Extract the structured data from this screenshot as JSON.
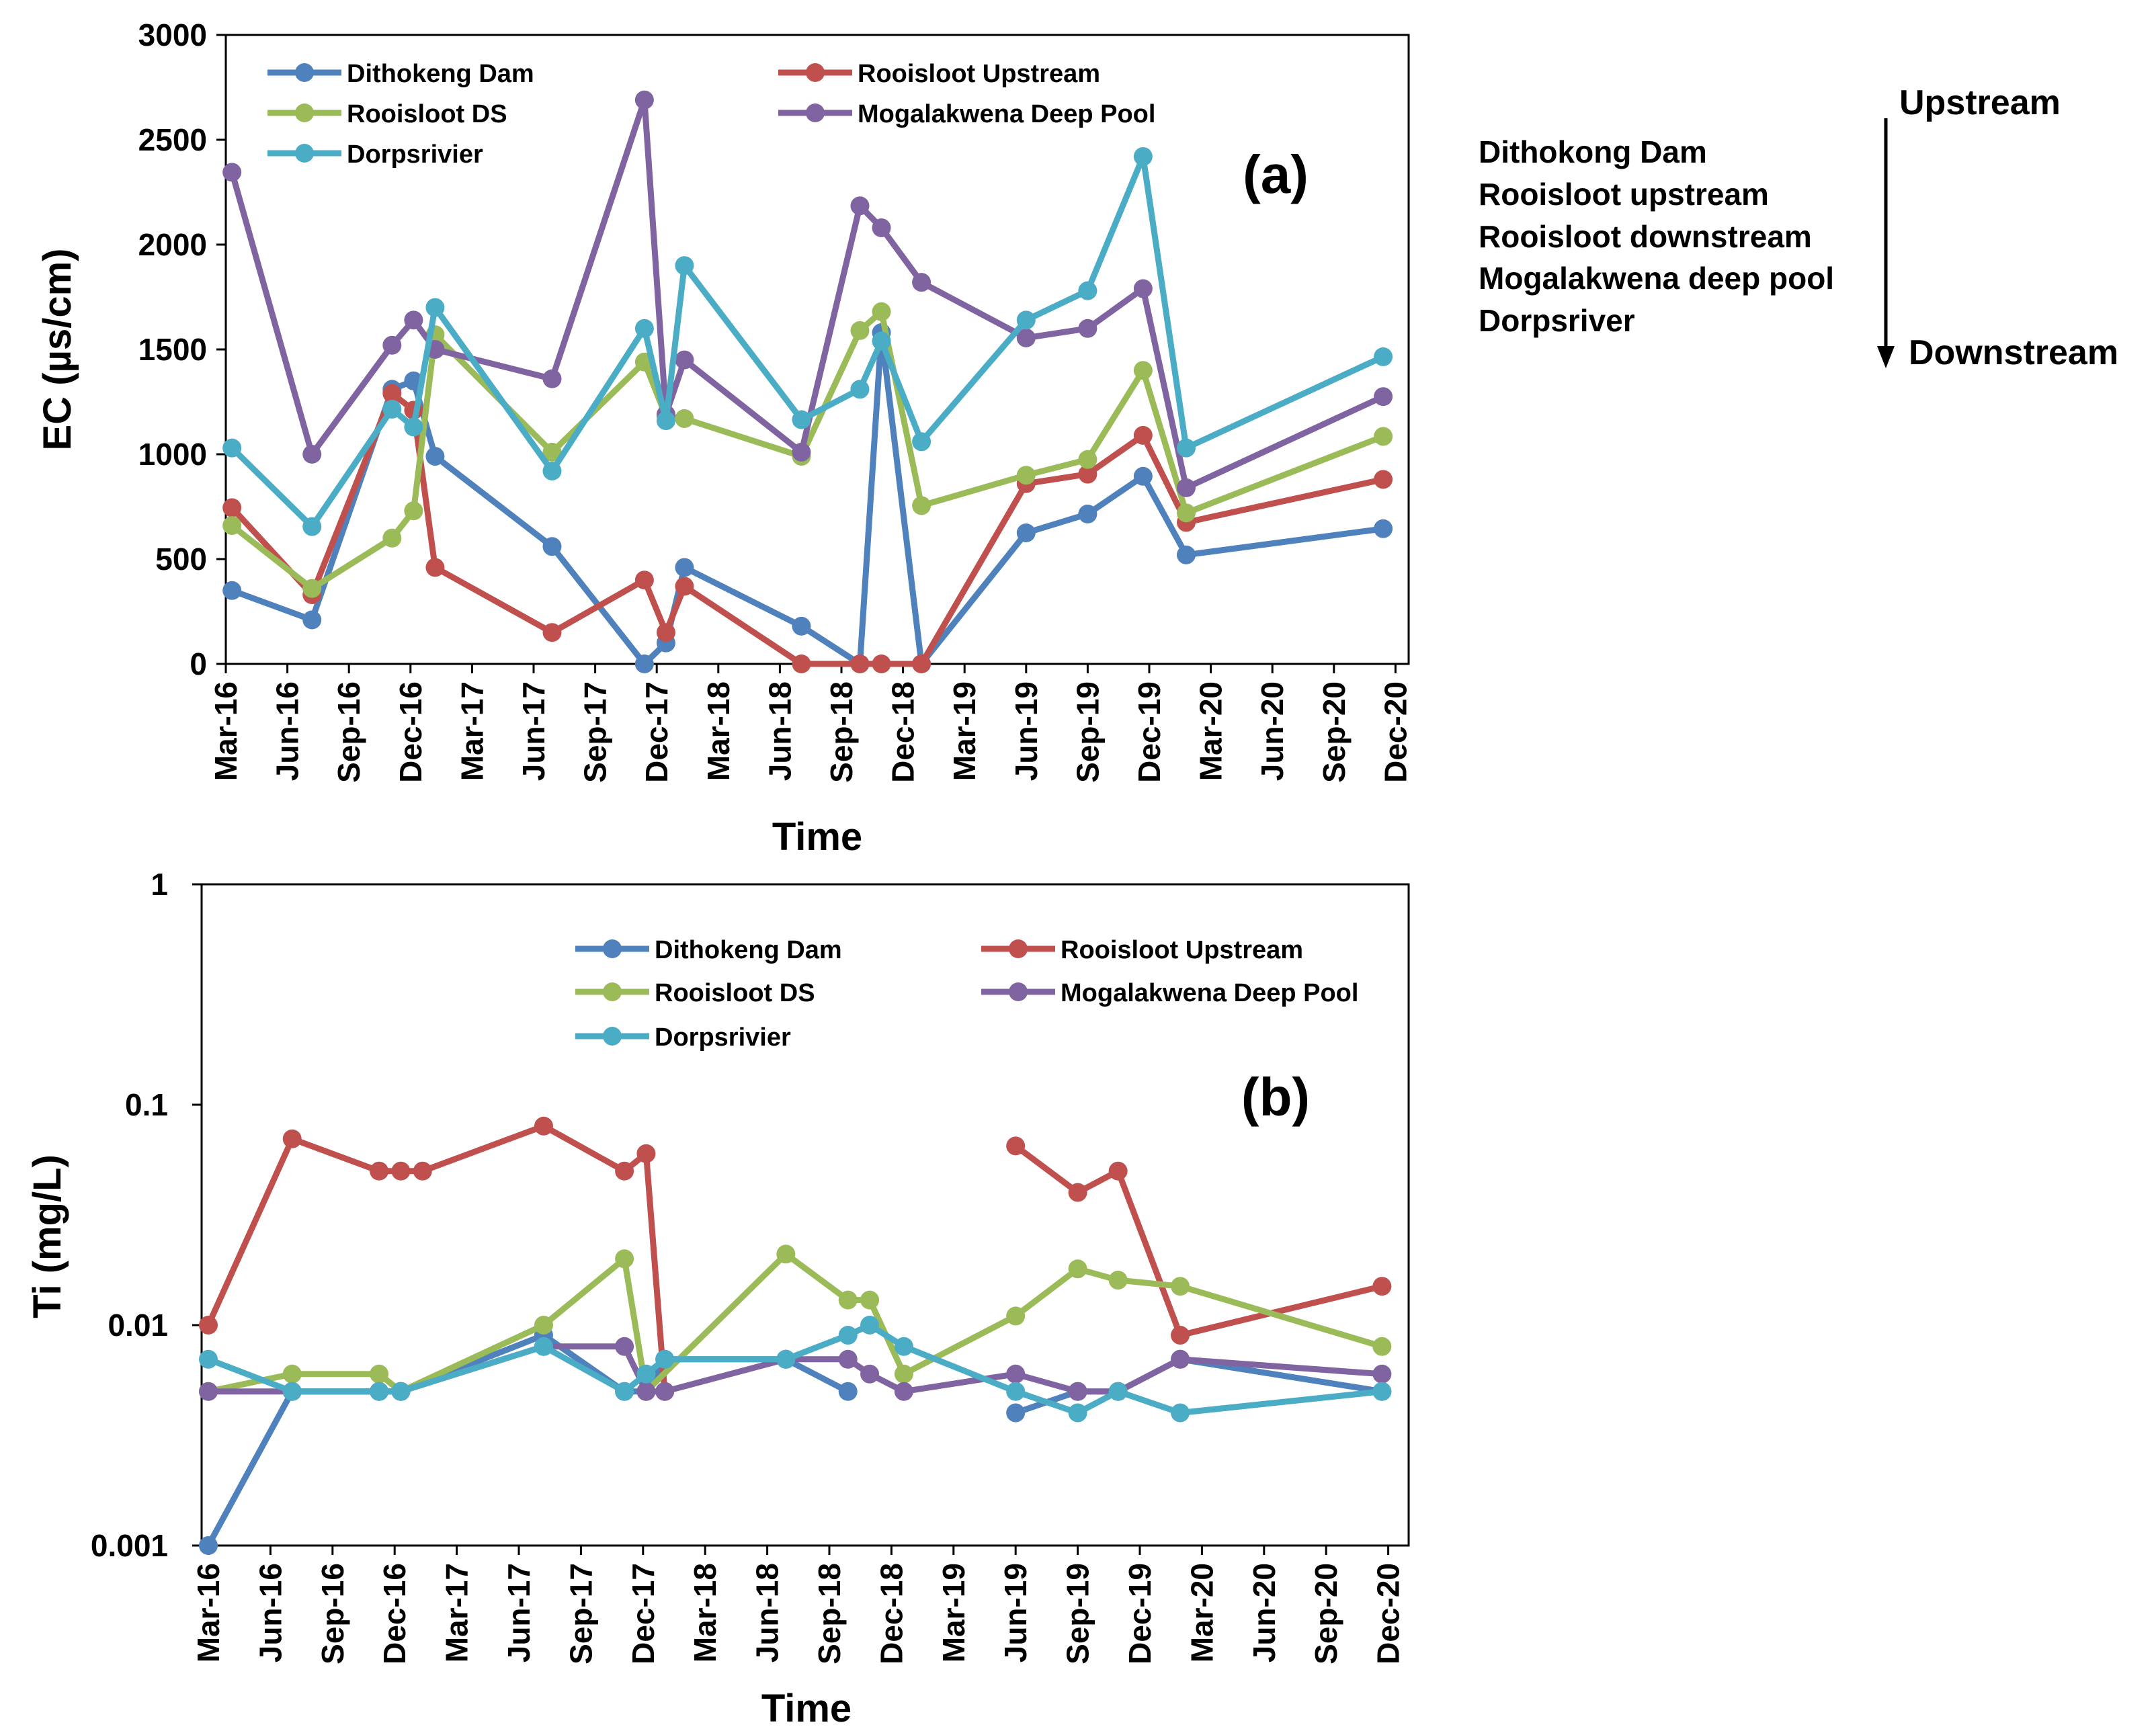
{
  "colors": {
    "Dithokeng Dam": "#4F81BD",
    "Rooisloot Upstream": "#C0504D",
    "Rooisloot DS": "#9BBB59",
    "Mogalakwena Deep Pool": "#8064A2",
    "Dorpsrivier": "#4BACC6"
  },
  "side_legend": {
    "upstream_label": "Upstream",
    "downstream_label": "Downstream",
    "sites": [
      "Dithokong Dam",
      "Rooisloot upstream",
      "Rooisloot downstream",
      "Mogalakwena deep pool",
      "Dorpsriver"
    ]
  },
  "chart_data": [
    {
      "type": "line",
      "panel_label": "(a)",
      "xlabel": "Time",
      "ylabel": "EC (µs/cm)",
      "x_ticks": [
        "Mar-16",
        "Jun-16",
        "Sep-16",
        "Dec-16",
        "Mar-17",
        "Jun-17",
        "Sep-17",
        "Dec-17",
        "Mar-18",
        "Jun-18",
        "Sep-18",
        "Dec-18",
        "Mar-19",
        "Jun-19",
        "Sep-19",
        "Dec-19",
        "Mar-20",
        "Jun-20",
        "Sep-20",
        "Dec-20"
      ],
      "ylim": [
        0,
        3000
      ],
      "y_ticks": [
        "0",
        "500",
        "1000",
        "1500",
        "2000",
        "2500",
        "3000"
      ],
      "legend_position": "top-left",
      "series": [
        {
          "name": "Dithokeng Dam",
          "points": [
            [
              0.1,
              350
            ],
            [
              1.4,
              210
            ],
            [
              2.7,
              1310
            ],
            [
              3.05,
              1350
            ],
            [
              3.4,
              990
            ],
            [
              5.3,
              560
            ],
            [
              6.8,
              0
            ],
            [
              7.15,
              100
            ],
            [
              7.45,
              460
            ],
            [
              9.35,
              180
            ],
            [
              10.3,
              0
            ],
            [
              10.65,
              1580
            ],
            [
              11.3,
              0
            ],
            [
              13.0,
              625
            ],
            [
              14.0,
              715
            ],
            [
              14.9,
              895
            ],
            [
              15.6,
              520
            ],
            [
              18.8,
              645
            ]
          ]
        },
        {
          "name": "Rooisloot Upstream",
          "points": [
            [
              0.1,
              745
            ],
            [
              1.4,
              330
            ],
            [
              2.7,
              1290
            ],
            [
              3.05,
              1210
            ],
            [
              3.4,
              460
            ],
            [
              5.3,
              150
            ],
            [
              6.8,
              400
            ],
            [
              7.15,
              150
            ],
            [
              7.45,
              370
            ],
            [
              9.35,
              0
            ],
            [
              10.3,
              0
            ],
            [
              10.65,
              0
            ],
            [
              11.3,
              0
            ],
            [
              13.0,
              860
            ],
            [
              14.0,
              905
            ],
            [
              14.9,
              1090
            ],
            [
              15.6,
              675
            ],
            [
              18.8,
              880
            ]
          ]
        },
        {
          "name": "Rooisloot DS",
          "points": [
            [
              0.1,
              660
            ],
            [
              1.4,
              360
            ],
            [
              2.7,
              600
            ],
            [
              3.05,
              730
            ],
            [
              3.4,
              1570
            ],
            [
              5.3,
              1010
            ],
            [
              6.8,
              1440
            ],
            [
              7.15,
              1180
            ],
            [
              7.45,
              1170
            ],
            [
              9.35,
              990
            ],
            [
              10.3,
              1590
            ],
            [
              10.65,
              1680
            ],
            [
              11.3,
              755
            ],
            [
              13.0,
              900
            ],
            [
              14.0,
              975
            ],
            [
              14.9,
              1400
            ],
            [
              15.6,
              720
            ],
            [
              18.8,
              1085
            ]
          ]
        },
        {
          "name": "Mogalakwena Deep Pool",
          "points": [
            [
              0.1,
              2345
            ],
            [
              1.4,
              1000
            ],
            [
              2.7,
              1520
            ],
            [
              3.05,
              1640
            ],
            [
              3.4,
              1500
            ],
            [
              5.3,
              1360
            ],
            [
              6.8,
              2690
            ],
            [
              7.15,
              1190
            ],
            [
              7.45,
              1450
            ],
            [
              9.35,
              1010
            ],
            [
              10.3,
              2185
            ],
            [
              10.65,
              2080
            ],
            [
              11.3,
              1820
            ],
            [
              13.0,
              1555
            ],
            [
              14.0,
              1600
            ],
            [
              14.9,
              1790
            ],
            [
              15.6,
              840
            ],
            [
              18.8,
              1275
            ]
          ]
        },
        {
          "name": "Dorpsrivier",
          "points": [
            [
              0.1,
              1030
            ],
            [
              1.4,
              655
            ],
            [
              2.7,
              1215
            ],
            [
              3.05,
              1130
            ],
            [
              3.4,
              1700
            ],
            [
              5.3,
              920
            ],
            [
              6.8,
              1600
            ],
            [
              7.15,
              1160
            ],
            [
              7.45,
              1900
            ],
            [
              9.35,
              1165
            ],
            [
              10.3,
              1310
            ],
            [
              10.65,
              1540
            ],
            [
              11.3,
              1060
            ],
            [
              13.0,
              1640
            ],
            [
              14.0,
              1780
            ],
            [
              14.9,
              2420
            ],
            [
              15.6,
              1030
            ],
            [
              18.8,
              1465
            ]
          ]
        }
      ]
    },
    {
      "type": "line",
      "panel_label": "(b)",
      "xlabel": "Time",
      "ylabel": "Ti (mg/L)",
      "yscale": "log",
      "ylim": [
        0.001,
        1
      ],
      "y_ticks": [
        "0.001",
        "0.01",
        "0.1",
        "1"
      ],
      "x_ticks": [
        "Mar-16",
        "Jun-16",
        "Sep-16",
        "Dec-16",
        "Mar-17",
        "Jun-17",
        "Sep-17",
        "Dec-17",
        "Mar-18",
        "Jun-18",
        "Sep-18",
        "Dec-18",
        "Mar-19",
        "Jun-19",
        "Sep-19",
        "Dec-19",
        "Mar-20",
        "Jun-20",
        "Sep-20",
        "Dec-20"
      ],
      "legend_position": "top-center",
      "series": [
        {
          "name": "Dithokeng Dam",
          "segments": [
            [
              [
                0,
                0.001
              ],
              [
                1.35,
                0.005
              ],
              [
                2.75,
                0.005
              ],
              [
                3.1,
                0.005
              ],
              [
                5.4,
                0.009
              ],
              [
                6.7,
                0.005
              ],
              [
                7.05,
                0.005
              ],
              [
                7.35,
                0.007
              ],
              [
                9.3,
                0.007
              ],
              [
                10.3,
                0.005
              ]
            ],
            [
              [
                13.0,
                0.004
              ],
              [
                14.0,
                0.005
              ],
              [
                14.65,
                0.005
              ],
              [
                15.65,
                0.007
              ],
              [
                18.9,
                0.005
              ]
            ]
          ]
        },
        {
          "name": "Rooisloot Upstream",
          "segments": [
            [
              [
                0,
                0.01
              ],
              [
                1.35,
                0.07
              ],
              [
                2.75,
                0.05
              ],
              [
                3.1,
                0.05
              ],
              [
                3.45,
                0.05
              ],
              [
                5.4,
                0.08
              ],
              [
                6.7,
                0.05
              ],
              [
                7.05,
                0.06
              ],
              [
                7.35,
                0.005
              ]
            ],
            [
              [
                13.0,
                0.065
              ],
              [
                14.0,
                0.04
              ],
              [
                14.65,
                0.05
              ],
              [
                15.65,
                0.009
              ],
              [
                18.9,
                0.015
              ]
            ]
          ]
        },
        {
          "name": "Rooisloot DS",
          "segments": [
            [
              [
                0,
                0.005
              ],
              [
                1.35,
                0.006
              ],
              [
                2.75,
                0.006
              ],
              [
                3.1,
                0.005
              ],
              [
                5.4,
                0.01
              ],
              [
                6.7,
                0.02
              ],
              [
                7.05,
                0.005
              ],
              [
                9.3,
                0.021
              ],
              [
                10.3,
                0.013
              ],
              [
                10.65,
                0.013
              ],
              [
                11.2,
                0.006
              ],
              [
                13.0,
                0.011
              ],
              [
                14.0,
                0.018
              ],
              [
                14.65,
                0.016
              ],
              [
                15.65,
                0.015
              ],
              [
                18.9,
                0.008
              ]
            ]
          ]
        },
        {
          "name": "Mogalakwena Deep Pool",
          "segments": [
            [
              [
                0,
                0.005
              ],
              [
                1.35,
                0.005
              ],
              [
                2.75,
                0.005
              ],
              [
                3.1,
                0.005
              ],
              [
                5.4,
                0.008
              ],
              [
                6.7,
                0.008
              ],
              [
                7.05,
                0.005
              ],
              [
                7.35,
                0.005
              ],
              [
                9.3,
                0.007
              ],
              [
                10.3,
                0.007
              ],
              [
                10.65,
                0.006
              ],
              [
                11.2,
                0.005
              ],
              [
                13.0,
                0.006
              ],
              [
                14.0,
                0.005
              ],
              [
                14.65,
                0.005
              ],
              [
                15.65,
                0.007
              ],
              [
                18.9,
                0.006
              ]
            ]
          ]
        },
        {
          "name": "Dorpsrivier",
          "segments": [
            [
              [
                0,
                0.007
              ],
              [
                1.35,
                0.005
              ],
              [
                2.75,
                0.005
              ],
              [
                3.1,
                0.005
              ],
              [
                5.4,
                0.008
              ],
              [
                6.7,
                0.005
              ],
              [
                7.05,
                0.006
              ],
              [
                7.35,
                0.007
              ],
              [
                9.3,
                0.007
              ],
              [
                10.3,
                0.009
              ],
              [
                10.65,
                0.01
              ],
              [
                11.2,
                0.008
              ],
              [
                13.0,
                0.005
              ],
              [
                14.0,
                0.004
              ],
              [
                14.65,
                0.005
              ],
              [
                15.65,
                0.004
              ],
              [
                18.9,
                0.005
              ]
            ]
          ]
        }
      ]
    }
  ]
}
